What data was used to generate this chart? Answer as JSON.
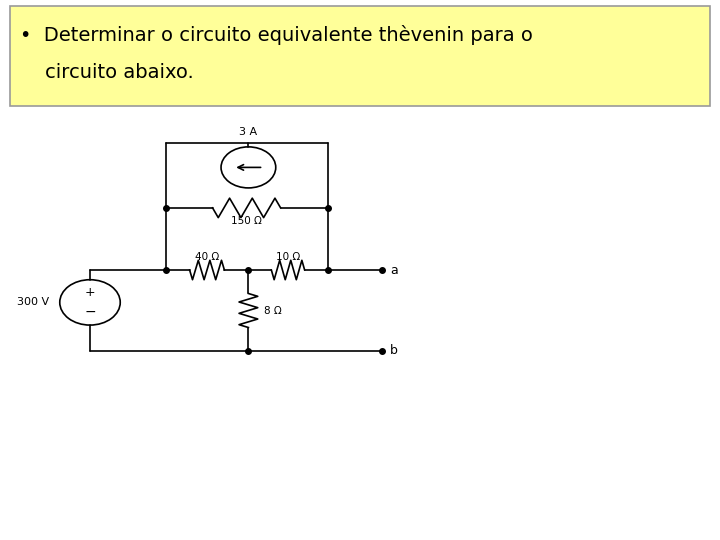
{
  "title_box_color": "#FFFF99",
  "title_box_edge_color": "#999999",
  "title_fontsize": 14,
  "background_color": "#FFFFFF",
  "circuit": {
    "current_source_label": "3 A",
    "resistors": [
      "150 Ω",
      "40 Ω",
      "10 Ω",
      "8 Ω"
    ],
    "voltage_source_label": "300 V",
    "terminals": [
      "a",
      "b"
    ]
  },
  "title_line1": "•  Determinar o circuito equivalente thèvenin para o",
  "title_line2": "    circuito abaixo."
}
